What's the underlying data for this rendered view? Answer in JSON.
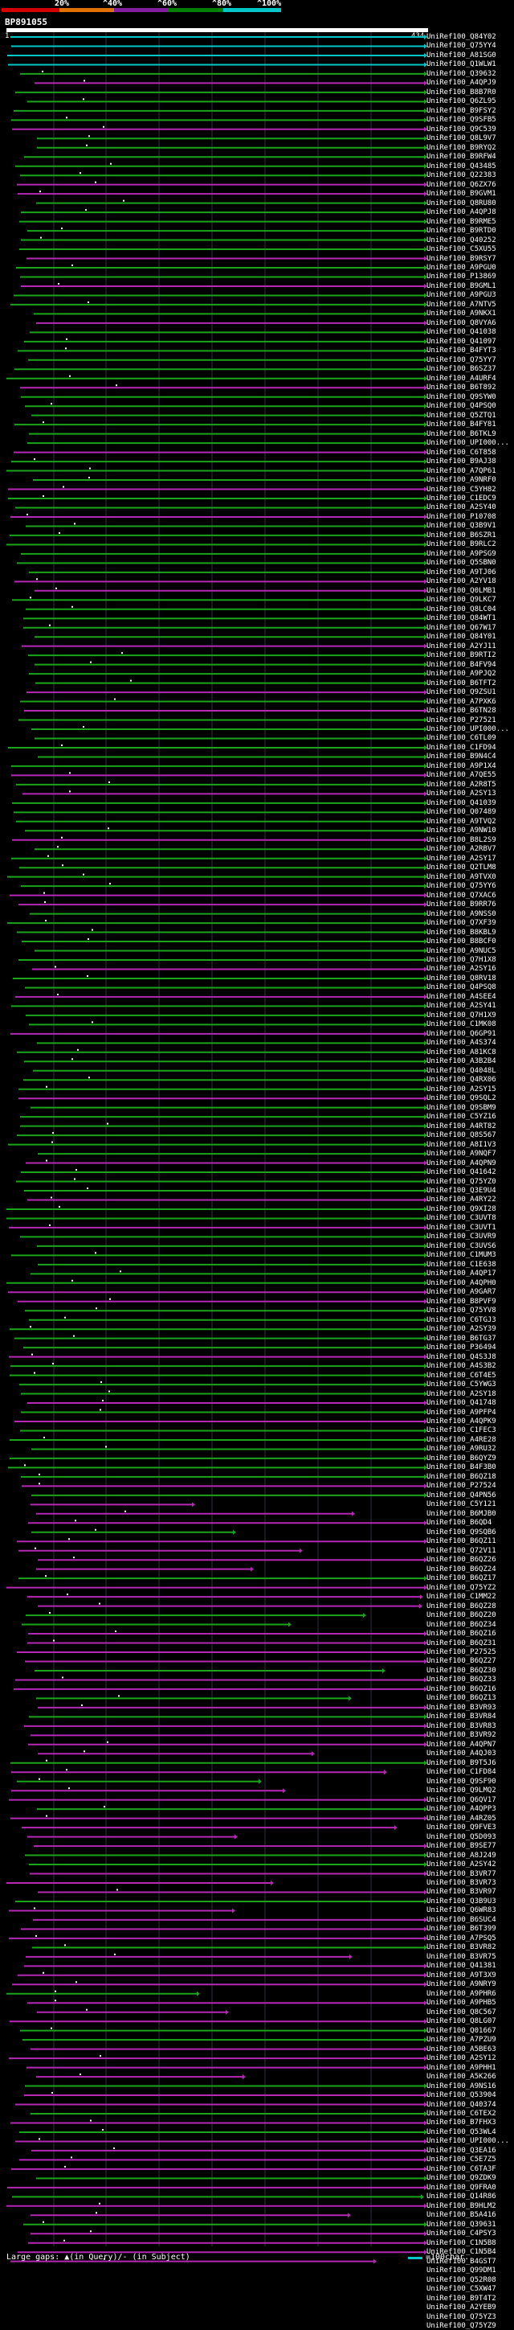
{
  "legend": {
    "labels": [
      "20%",
      "^40%",
      "^60%",
      "^80%",
      "^100%"
    ],
    "band_colors": [
      "#d40000",
      "#e07000",
      "#8020a0",
      "#008000",
      "#00c8c8"
    ]
  },
  "query": {
    "id": "BP891055",
    "start": "1",
    "end": "434"
  },
  "colors": {
    "cyan": "#00c8c8",
    "green": "#1aa41a",
    "magenta": "#b428b4",
    "grid": "#303040"
  },
  "hits": [
    "UniRef100_Q84Y02",
    "UniRef100_Q75YY4",
    "UniRef100_A81SG0",
    "UniRef100_Q1WLW1",
    "UniRef100_Q39632",
    "UniRef100_A4QPJ9",
    "UniRef100_B8B7R0",
    "UniRef100_Q6ZL95",
    "UniRef100_B9FSY2",
    "UniRef100_Q9SFB5",
    "UniRef100_Q9C539",
    "UniRef100_Q8L9V7",
    "UniRef100_B9RYQ2",
    "UniRef100_B9RFW4",
    "UniRef100_Q43485",
    "UniRef100_Q22383",
    "UniRef100_Q6ZX76",
    "UniRef100_B9GVM1",
    "UniRef100_Q8RU80",
    "UniRef100_A4QPJ8",
    "UniRef100_B9RME5",
    "UniRef100_B9RTD0",
    "UniRef100_Q40252",
    "UniRef100_C5XU55",
    "UniRef100_B9RSY7",
    "UniRef100_A9PGU0",
    "UniRef100_P13869",
    "UniRef100_B9GML1",
    "UniRef100_A9PGU3",
    "UniRef100_A7NTV5",
    "UniRef100_A9NKX1",
    "UniRef100_Q8VYA6",
    "UniRef100_Q41038",
    "UniRef100_Q41097",
    "UniRef100_B4FYT3",
    "UniRef100_Q75YY7",
    "UniRef100_B6SZ37",
    "UniRef100_A4URF4",
    "UniRef100_B6T892",
    "UniRef100_Q9SYW0",
    "UniRef100_Q4PSQ0",
    "UniRef100_Q5ZTQ1",
    "UniRef100_B4FY81",
    "UniRef100_B6TKL9",
    "UniRef100_UPI000...",
    "UniRef100_C6T858",
    "UniRef100_B9AJ38",
    "UniRef100_A7QP61",
    "UniRef100_A9NRF0",
    "UniRef100_C5YH82",
    "UniRef100_C1EDC9",
    "UniRef100_A2SY40",
    "UniRef100_P10708",
    "UniRef100_Q3B9V1",
    "UniRef100_B6SZR1",
    "UniRef100_B9RLC2",
    "UniRef100_A9PSG9",
    "UniRef100_Q5SBN0",
    "UniRef100_A9TJ06",
    "UniRef100_A2YV18",
    "UniRef100_Q0LMB1",
    "UniRef100_Q9LKC7",
    "UniRef100_Q8LC04",
    "UniRef100_Q84WT1",
    "UniRef100_Q67W17",
    "UniRef100_Q84Y01",
    "UniRef100_A2YJ11",
    "UniRef100_B9RTI2",
    "UniRef100_B4FV94",
    "UniRef100_A9PJQ2",
    "UniRef100_B6TFT2",
    "UniRef100_Q9ZSU1",
    "UniRef100_A7PXK6",
    "UniRef100_B6TN28",
    "UniRef100_P27521",
    "UniRef100_UPI000...",
    "UniRef100_C6TL09",
    "UniRef100_C1FD94",
    "UniRef100_B9N4C4",
    "UniRef100_A9P1X4",
    "UniRef100_A7QE55",
    "UniRef100_A2R8T5",
    "UniRef100_A2SY13",
    "UniRef100_Q41039",
    "UniRef100_Q07489",
    "UniRef100_A9TVQ2",
    "UniRef100_A9NW10",
    "UniRef100_B8L2S9",
    "UniRef100_A2RBV7",
    "UniRef100_A2SY17",
    "UniRef100_Q2TLM8",
    "UniRef100_A9TVX0",
    "UniRef100_Q75YY6",
    "UniRef100_Q7XAC6",
    "UniRef100_B9RR76",
    "UniRef100_A9NSS0",
    "UniRef100_Q7XF39",
    "UniRef100_B8KBL9",
    "UniRef100_B8BCF0",
    "UniRef100_A9NUC5",
    "UniRef100_Q7H1X8",
    "UniRef100_A2SY16",
    "UniRef100_Q8RV18",
    "UniRef100_Q4PSQ8",
    "UniRef100_A4SEE4",
    "UniRef100_A2SY41",
    "UniRef100_Q7H1X9",
    "UniRef100_C1MK08",
    "UniRef100_Q6GP91",
    "UniRef100_A4S374",
    "UniRef100_A81KC8",
    "UniRef100_A3B2B4",
    "UniRef100_Q4048L",
    "UniRef100_Q4RX06",
    "UniRef100_A2SY15",
    "UniRef100_Q9SQL2",
    "UniRef100_Q9SBM9",
    "UniRef100_C5YZ16",
    "UniRef100_A4RT82",
    "UniRef100_Q8S567",
    "UniRef100_A8I1V3",
    "UniRef100_A9NQF7",
    "UniRef100_A4QPN9",
    "UniRef100_Q41642",
    "UniRef100_Q75YZ0",
    "UniRef100_Q3E9U4",
    "UniRef100_A4RY22",
    "UniRef100_Q9XI28",
    "UniRef100_C3UVT8",
    "UniRef100_C3UVT1",
    "UniRef100_C3UVR9",
    "UniRef100_C3UVS6",
    "UniRef100_C1MUM3",
    "UniRef100_C1E638",
    "UniRef100_A4QP17",
    "UniRef100_A4QPH0",
    "UniRef100_A9GAR7",
    "UniRef100_B8PVF9",
    "UniRef100_Q75YV8",
    "UniRef100_C6TGJ3",
    "UniRef100_A2SY39",
    "UniRef100_B6TG37",
    "UniRef100_P36494",
    "UniRef100_Q4S3J8",
    "UniRef100_A4S3B2",
    "UniRef100_C6T4E5",
    "UniRef100_C5YWG3",
    "UniRef100_A2SY18",
    "UniRef100_Q41748",
    "UniRef100_A9PFP4",
    "UniRef100_A4QPK9",
    "UniRef100_C1FEC3",
    "UniRef100_A4RE28",
    "UniRef100_A9RU32",
    "UniRef100_B6QYZ9",
    "UniRef100_B4F3B0",
    "UniRef100_B6QZ18",
    "UniRef100_P27524",
    "UniRef100_Q4PN56",
    "UniRef100_C5Y121",
    "UniRef100_B6MJB0",
    "UniRef100_B6QD4",
    "UniRef100_Q9SQB6",
    "UniRef100_B6QZ11",
    "UniRef100_Q72V11",
    "UniRef100_B6QZ26",
    "UniRef100_B6QZ24",
    "UniRef100_B6QZ17",
    "UniRef100_Q75YZ2",
    "UniRef100_C1MM22",
    "UniRef100_B6QZ28",
    "UniRef100_B6QZ20",
    "UniRef100_B6QZ34",
    "UniRef100_B6QZ16",
    "UniRef100_B6QZ31",
    "UniRef100_P27525",
    "UniRef100_B6QZ27",
    "UniRef100_B6QZ30",
    "UniRef100_B6QZ33",
    "UniRef100_B6QZ16",
    "UniRef100_B6QZ13",
    "UniRef100_B3VR93",
    "UniRef100_B3VR84",
    "UniRef100_B3VR83",
    "UniRef100_B3VR92",
    "UniRef100_A4QPN7",
    "UniRef100_A4QJ03",
    "UniRef100_B9T5J6",
    "UniRef100_C1FD84",
    "UniRef100_Q9SF90",
    "UniRef100_Q9LMQ2",
    "UniRef100_Q6QV17",
    "UniRef100_A4QPP3",
    "UniRef100_A4RZ05",
    "UniRef100_Q9FVE3",
    "UniRef100_Q5D093",
    "UniRef100_B9SE77",
    "UniRef100_A8J249",
    "UniRef100_A2SY42",
    "UniRef100_B3VR77",
    "UniRef100_B3VR73",
    "UniRef100_B3VR97",
    "UniRef100_Q3B9U3",
    "UniRef100_Q6WR83",
    "UniRef100_B6SUC4",
    "UniRef100_B6T399",
    "UniRef100_A7PSQ5",
    "UniRef100_B3VR82",
    "UniRef100_B3VR75",
    "UniRef100_Q41381",
    "UniRef100_A9T3X9",
    "UniRef100_A9NRY9",
    "UniRef100_A9PHR6",
    "UniRef100_A9PHB5",
    "UniRef100_Q8C567",
    "UniRef100_Q8LG07",
    "UniRef100_Q01667",
    "UniRef100_A7PZU9",
    "UniRef100_A5BE63",
    "UniRef100_A2SY12",
    "UniRef100_A9PHH1",
    "UniRef100_A5K266",
    "UniRef100_A9NS16",
    "UniRef100_Q53904",
    "UniRef100_Q40374",
    "UniRef100_C6TEX2",
    "UniRef100_B7FHX3",
    "UniRef100_Q53WL4",
    "UniRef100_UPI000...",
    "UniRef100_Q3EA16",
    "UniRef100_C5E7Z5",
    "UniRef100_C6TA3F",
    "UniRef100_Q9ZDK9",
    "UniRef100_Q9FRA0",
    "UniRef100_Q14R86",
    "UniRef100_B9HLM2",
    "UniRef100_B5A416",
    "UniRef100_Q39631",
    "UniRef100_C4PSY3",
    "UniRef100_C1N5B8",
    "UniRef100_C1N5B4",
    "UniRef100_B4GST7",
    "UniRef100_Q99DM1",
    "UniRef100_Q52R08",
    "UniRef100_C5XW47",
    "UniRef100_B9T4T2",
    "UniRef100_A2YEB9",
    "UniRef100_Q75YZ3",
    "UniRef100_Q75YZ9"
  ],
  "footer": {
    "large_gaps_text": "Large gaps: ▲(in Query)/- (in Subject)",
    "scale_text": "=100char."
  }
}
